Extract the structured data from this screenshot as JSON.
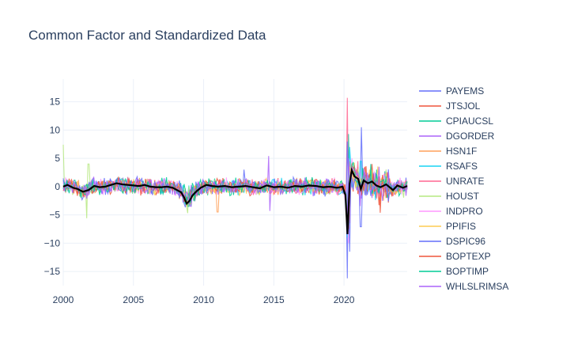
{
  "chart_data": {
    "type": "line",
    "title": "Common Factor and Standardized Data",
    "xlabel": "",
    "ylabel": "",
    "xlim": [
      2000,
      2024.5
    ],
    "ylim": [
      -17.5,
      19
    ],
    "x_ticks": [
      2000,
      2005,
      2010,
      2015,
      2020
    ],
    "x_tick_labels": [
      "2000",
      "2005",
      "2010",
      "2015",
      "2020"
    ],
    "y_ticks": [
      15,
      10,
      5,
      0,
      -5,
      -10,
      -15
    ],
    "y_tick_labels": [
      "15",
      "10",
      "5",
      "0",
      "−5",
      "−10",
      "−15"
    ],
    "grid": true,
    "legend_position": "right",
    "series": [
      {
        "name": "PAYEMS",
        "color": "#636efa",
        "spikes": [
          [
            2020.25,
            -16.2
          ],
          [
            2020.33,
            6.5
          ],
          [
            2021.25,
            10.5
          ],
          [
            2008.9,
            -3.5
          ]
        ]
      },
      {
        "name": "JTSJOL",
        "color": "#EF553B",
        "spikes": [
          [
            2020.25,
            -5.0
          ],
          [
            2021.5,
            3.5
          ],
          [
            2022.0,
            4.0
          ]
        ]
      },
      {
        "name": "CPIAUCSL",
        "color": "#00cc96",
        "spikes": [
          [
            2020.33,
            9.3
          ],
          [
            2008.9,
            -3.5
          ],
          [
            2022.3,
            3.0
          ]
        ]
      },
      {
        "name": "DGORDER",
        "color": "#ab63fa",
        "spikes": [
          [
            2014.6,
            5.4
          ],
          [
            2014.7,
            -4.3
          ],
          [
            2020.3,
            -8.0
          ]
        ]
      },
      {
        "name": "HSN1F",
        "color": "#FFA15A",
        "spikes": [
          [
            2011.0,
            -4.5
          ],
          [
            2020.4,
            4.5
          ],
          [
            2009.0,
            -3.0
          ]
        ]
      },
      {
        "name": "RSAFS",
        "color": "#19d3f3",
        "spikes": [
          [
            2020.25,
            -9.0
          ],
          [
            2020.4,
            7.0
          ],
          [
            2021.2,
            4.5
          ]
        ]
      },
      {
        "name": "UNRATE",
        "color": "#FF6692",
        "spikes": [
          [
            2020.25,
            15.7
          ],
          [
            2020.4,
            -6.5
          ],
          [
            2021.0,
            4.5
          ]
        ]
      },
      {
        "name": "HOUST",
        "color": "#B6E880",
        "spikes": [
          [
            2000.0,
            7.4
          ],
          [
            2001.7,
            -5.6
          ],
          [
            2001.8,
            4.0
          ]
        ]
      },
      {
        "name": "INDPRO",
        "color": "#FF97FF",
        "spikes": [
          [
            2020.3,
            -10.0
          ],
          [
            2008.8,
            -3.0
          ],
          [
            2020.6,
            5.0
          ]
        ]
      },
      {
        "name": "PPIFIS",
        "color": "#FECB52",
        "spikes": [
          [
            2008.8,
            -3.5
          ],
          [
            2020.4,
            3.5
          ],
          [
            2021.8,
            3.0
          ]
        ]
      },
      {
        "name": "DSPIC96",
        "color": "#636efa",
        "spikes": [
          [
            2020.25,
            8.0
          ],
          [
            2021.2,
            -7.1
          ],
          [
            2020.4,
            -11.5
          ],
          [
            2012.9,
            3.0
          ]
        ]
      },
      {
        "name": "BOPTEXP",
        "color": "#EF553B",
        "spikes": [
          [
            2020.3,
            -7.5
          ],
          [
            2022.6,
            -4.6
          ],
          [
            2020.6,
            4.0
          ]
        ]
      },
      {
        "name": "BOPTIMP",
        "color": "#00cc96",
        "spikes": [
          [
            2020.3,
            -6.5
          ],
          [
            2021.9,
            4.0
          ],
          [
            2009.0,
            -3.0
          ]
        ]
      },
      {
        "name": "WHLSLRIMSA",
        "color": "#ab63fa",
        "spikes": [
          [
            2020.35,
            5.0
          ],
          [
            2009.1,
            -3.5
          ],
          [
            2022.5,
            3.5
          ]
        ]
      }
    ],
    "common_factor": {
      "color": "#000000",
      "points": [
        [
          2000.0,
          0.0
        ],
        [
          2000.3,
          0.3
        ],
        [
          2000.7,
          -0.2
        ],
        [
          2001.0,
          -0.4
        ],
        [
          2001.4,
          -0.9
        ],
        [
          2001.8,
          -0.6
        ],
        [
          2002.2,
          0.1
        ],
        [
          2002.6,
          -0.1
        ],
        [
          2003.0,
          0.0
        ],
        [
          2003.4,
          0.3
        ],
        [
          2003.8,
          0.6
        ],
        [
          2004.2,
          0.4
        ],
        [
          2004.6,
          0.3
        ],
        [
          2005.0,
          0.2
        ],
        [
          2005.4,
          0.1
        ],
        [
          2005.8,
          0.3
        ],
        [
          2006.2,
          0.0
        ],
        [
          2006.6,
          -0.1
        ],
        [
          2007.0,
          -0.1
        ],
        [
          2007.4,
          0.0
        ],
        [
          2007.8,
          -0.2
        ],
        [
          2008.1,
          -0.6
        ],
        [
          2008.4,
          -1.0
        ],
        [
          2008.6,
          -1.9
        ],
        [
          2008.8,
          -3.0
        ],
        [
          2009.0,
          -2.5
        ],
        [
          2009.2,
          -1.6
        ],
        [
          2009.5,
          -0.8
        ],
        [
          2009.8,
          -0.2
        ],
        [
          2010.2,
          0.3
        ],
        [
          2010.6,
          0.1
        ],
        [
          2011.0,
          0.0
        ],
        [
          2011.5,
          0.1
        ],
        [
          2012.0,
          -0.1
        ],
        [
          2012.5,
          0.0
        ],
        [
          2013.0,
          0.1
        ],
        [
          2013.5,
          -0.1
        ],
        [
          2014.0,
          -0.3
        ],
        [
          2014.5,
          0.2
        ],
        [
          2015.0,
          -0.1
        ],
        [
          2015.5,
          0.0
        ],
        [
          2016.0,
          -0.2
        ],
        [
          2016.5,
          0.1
        ],
        [
          2017.0,
          0.0
        ],
        [
          2017.5,
          0.2
        ],
        [
          2018.0,
          0.1
        ],
        [
          2018.5,
          -0.1
        ],
        [
          2019.0,
          0.0
        ],
        [
          2019.5,
          -0.2
        ],
        [
          2019.9,
          0.0
        ],
        [
          2020.1,
          -1.5
        ],
        [
          2020.25,
          -8.4
        ],
        [
          2020.4,
          0.5
        ],
        [
          2020.55,
          2.9
        ],
        [
          2020.75,
          1.8
        ],
        [
          2021.0,
          1.4
        ],
        [
          2021.2,
          -0.4
        ],
        [
          2021.4,
          1.1
        ],
        [
          2021.7,
          0.6
        ],
        [
          2022.0,
          0.9
        ],
        [
          2022.3,
          0.2
        ],
        [
          2022.6,
          -0.1
        ],
        [
          2023.0,
          0.4
        ],
        [
          2023.5,
          -0.6
        ],
        [
          2023.8,
          0.2
        ],
        [
          2024.2,
          -0.2
        ],
        [
          2024.5,
          0.1
        ]
      ]
    }
  }
}
